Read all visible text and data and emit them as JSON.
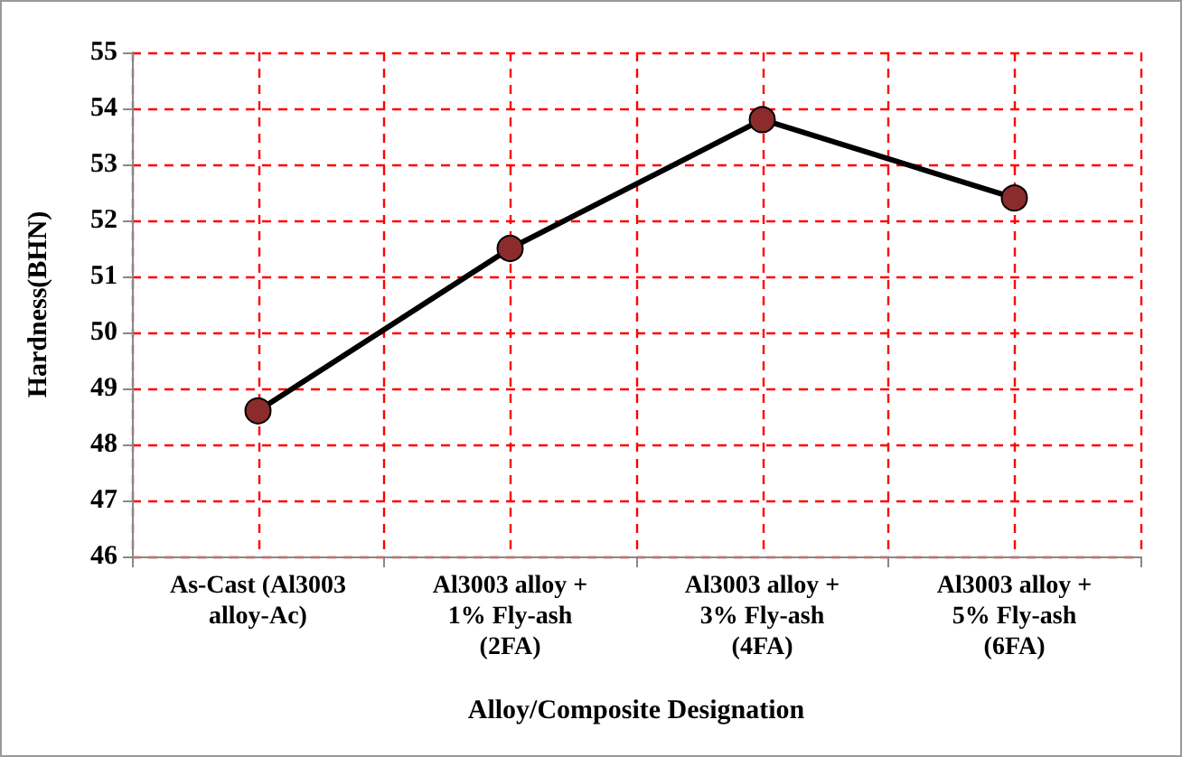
{
  "chart_data": {
    "type": "line",
    "xlabel": "Alloy/Composite Designation",
    "ylabel": "Hardness(BHN)",
    "categories": [
      "As-Cast (Al3003\nalloy-Ac)",
      "Al3003 alloy +\n1% Fly-ash\n(2FA)",
      "Al3003 alloy +\n3% Fly-ash\n(4FA)",
      "Al3003 alloy +\n5% Fly-ash\n(6FA)"
    ],
    "series": [
      {
        "color": "#000000",
        "colors": [
          "#8b2b2b",
          "#8b2b2b",
          "#8b2b2b",
          "#8b2b2b"
        ],
        "values": [
          48.6,
          51.5,
          53.8,
          52.4
        ]
      }
    ],
    "ylim": [
      46,
      55
    ],
    "yticks": [
      46,
      47,
      48,
      49,
      50,
      51,
      52,
      53,
      54,
      55
    ],
    "grid": true,
    "marker": "circle",
    "line_style": "solid"
  }
}
